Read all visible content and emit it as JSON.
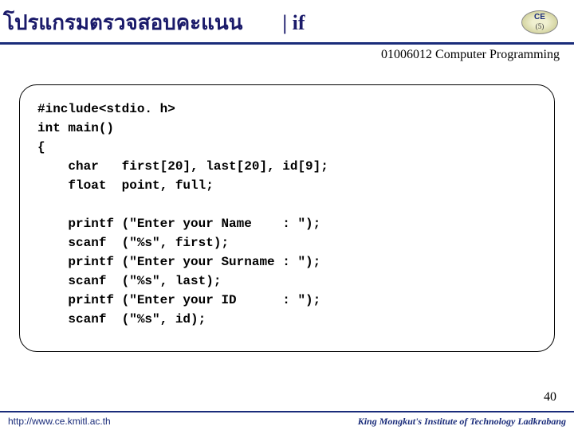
{
  "header": {
    "title_thai": "โปรแกรมตรวจสอบคะแนน",
    "title_if": "| if",
    "logo_text": "CE",
    "logo_pagehint": "(5)"
  },
  "subheader": "01006012 Computer Programming",
  "code": "#include<stdio. h>\nint main()\n{\n    char   first[20], last[20], id[9];\n    float  point, full;\n\n    printf (\"Enter your Name    : \");\n    scanf  (\"%s\", first);\n    printf (\"Enter your Surname : \");\n    scanf  (\"%s\", last);\n    printf (\"Enter your ID      : \");\n    scanf  (\"%s\", id);",
  "page_number": "40",
  "footer": {
    "left": "http://www.ce.kmitl.ac.th",
    "right": "King Mongkut's Institute of Technology Ladkrabang"
  },
  "colors": {
    "header_border": "#1a2c7a",
    "title_color": "#1a1a6a",
    "footer_color": "#1a2c7a",
    "background": "#ffffff",
    "code_border": "#000000"
  }
}
